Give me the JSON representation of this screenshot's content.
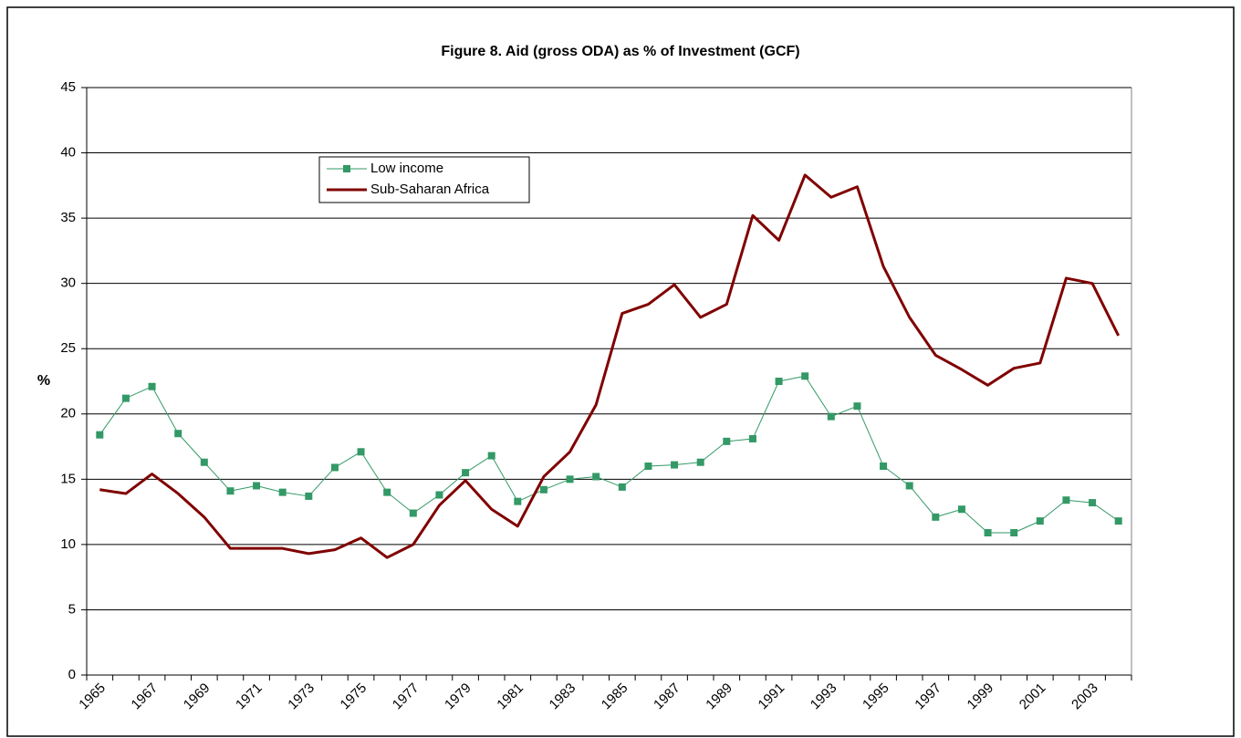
{
  "chart_data": {
    "type": "line",
    "title": "Figure 8. Aid (gross ODA) as % of Investment (GCF)",
    "y_label": "%",
    "categories": [
      "1965",
      null,
      "1967",
      null,
      "1969",
      null,
      "1971",
      null,
      "1973",
      null,
      "1975",
      null,
      "1977",
      null,
      "1979",
      null,
      "1981",
      null,
      "1983",
      null,
      "1985",
      null,
      "1987",
      null,
      "1989",
      null,
      "1991",
      null,
      "1993",
      null,
      "1995",
      null,
      "1997",
      null,
      "1999",
      null,
      "2001",
      null,
      "2003",
      null
    ],
    "series": [
      {
        "name": "Low income",
        "color": "#339966",
        "marker": "square",
        "values": [
          18.4,
          21.2,
          22.1,
          18.5,
          16.3,
          14.1,
          14.5,
          14.0,
          13.7,
          15.9,
          17.1,
          14.0,
          12.4,
          13.8,
          15.5,
          16.8,
          13.3,
          14.2,
          15.0,
          15.2,
          14.4,
          16.0,
          16.1,
          16.3,
          17.9,
          18.1,
          22.5,
          22.9,
          19.8,
          20.6,
          16.0,
          14.5,
          12.1,
          12.7,
          10.9,
          10.9,
          11.8,
          13.4,
          13.2,
          11.8
        ]
      },
      {
        "name": "Sub-Saharan Africa",
        "color": "#800000",
        "values": [
          14.2,
          13.9,
          15.4,
          13.9,
          12.1,
          9.7,
          9.7,
          9.7,
          9.3,
          9.6,
          10.5,
          9.0,
          10.0,
          13.0,
          14.9,
          12.7,
          11.4,
          15.2,
          17.1,
          20.7,
          27.7,
          28.4,
          29.9,
          27.4,
          28.4,
          35.2,
          33.3,
          38.3,
          36.6,
          37.4,
          31.3,
          27.4,
          24.5,
          23.4,
          22.2,
          23.5,
          23.9,
          30.4,
          30.0,
          26.0
        ]
      }
    ],
    "ylim": [
      0,
      45
    ],
    "yticks": [
      0,
      5,
      10,
      15,
      20,
      25,
      30,
      35,
      40,
      45
    ],
    "grid": true
  }
}
